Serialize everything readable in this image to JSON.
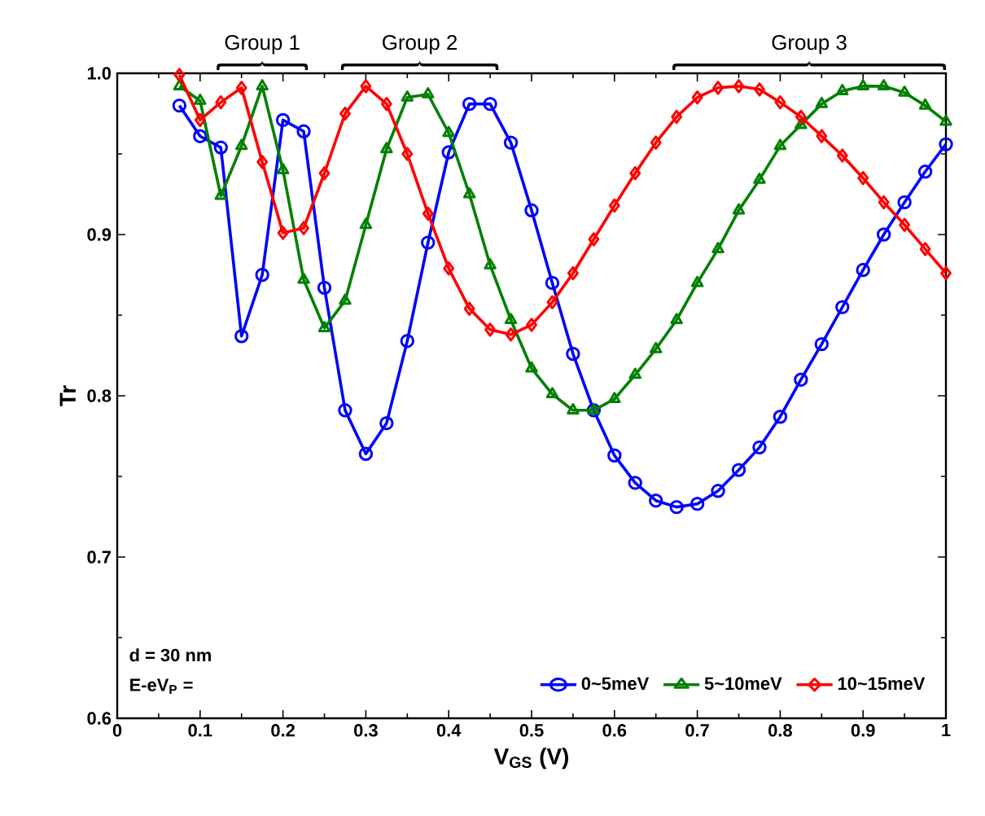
{
  "chart_data": {
    "type": "line",
    "xlabel": "V$_{GS}$ (V)",
    "ylabel": "Tr",
    "xlim": [
      0,
      1
    ],
    "ylim": [
      0.6,
      1.0
    ],
    "xticks": [
      0,
      0.1,
      0.2,
      0.3,
      0.4,
      0.5,
      0.6,
      0.7,
      0.8,
      0.9,
      1
    ],
    "yticks": [
      0.6,
      0.7,
      0.8,
      0.9,
      {
        "value": 1.0,
        "label": "1.0"
      }
    ],
    "grid": false,
    "legend": "bottom right",
    "legend_title": "E-eV$_{P}$ =",
    "annotations": [
      "Group 1",
      "Group 2",
      "Group 3",
      "d = 30 nm"
    ],
    "series": [
      {
        "name": "0~5meV",
        "color": "#0000ff",
        "marker": "circle",
        "x": [
          0.075,
          0.1,
          0.125,
          0.15,
          0.175,
          0.2,
          0.225,
          0.25,
          0.275,
          0.3,
          0.325,
          0.35,
          0.375,
          0.4,
          0.425,
          0.45,
          0.475,
          0.5,
          0.525,
          0.55,
          0.575,
          0.6,
          0.625,
          0.65,
          0.675,
          0.7,
          0.725,
          0.75,
          0.775,
          0.8,
          0.825,
          0.85,
          0.875,
          0.9,
          0.925,
          0.95,
          0.975,
          1.0
        ],
        "values": [
          0.98,
          0.961,
          0.954,
          0.837,
          0.875,
          0.971,
          0.964,
          0.867,
          0.791,
          0.764,
          0.783,
          0.834,
          0.895,
          0.951,
          0.981,
          0.981,
          0.957,
          0.915,
          0.87,
          0.826,
          0.791,
          0.763,
          0.746,
          0.735,
          0.731,
          0.733,
          0.741,
          0.754,
          0.768,
          0.787,
          0.81,
          0.832,
          0.855,
          0.878,
          0.9,
          0.92,
          0.939,
          0.956
        ]
      },
      {
        "name": "5~10meV",
        "color": "#008000",
        "marker": "triangle",
        "x": [
          0.075,
          0.1,
          0.125,
          0.15,
          0.175,
          0.2,
          0.225,
          0.25,
          0.275,
          0.3,
          0.325,
          0.35,
          0.375,
          0.4,
          0.425,
          0.45,
          0.475,
          0.5,
          0.525,
          0.55,
          0.575,
          0.6,
          0.625,
          0.65,
          0.675,
          0.7,
          0.725,
          0.75,
          0.775,
          0.8,
          0.825,
          0.85,
          0.875,
          0.9,
          0.925,
          0.95,
          0.975,
          1.0
        ],
        "values": [
          0.992,
          0.983,
          0.924,
          0.955,
          0.992,
          0.94,
          0.872,
          0.842,
          0.859,
          0.906,
          0.953,
          0.985,
          0.987,
          0.963,
          0.925,
          0.881,
          0.847,
          0.817,
          0.801,
          0.791,
          0.791,
          0.798,
          0.813,
          0.829,
          0.847,
          0.87,
          0.891,
          0.915,
          0.934,
          0.955,
          0.968,
          0.981,
          0.989,
          0.992,
          0.992,
          0.988,
          0.98,
          0.97
        ]
      },
      {
        "name": "10~15meV",
        "color": "#ff0000",
        "marker": "diamond",
        "x": [
          0.075,
          0.1,
          0.125,
          0.15,
          0.175,
          0.2,
          0.225,
          0.25,
          0.275,
          0.3,
          0.325,
          0.35,
          0.375,
          0.4,
          0.425,
          0.45,
          0.475,
          0.5,
          0.525,
          0.55,
          0.575,
          0.6,
          0.625,
          0.65,
          0.675,
          0.7,
          0.725,
          0.75,
          0.775,
          0.8,
          0.825,
          0.85,
          0.875,
          0.9,
          0.925,
          0.95,
          0.975,
          1.0
        ],
        "values": [
          0.999,
          0.971,
          0.982,
          0.991,
          0.945,
          0.901,
          0.904,
          0.938,
          0.975,
          0.992,
          0.981,
          0.95,
          0.913,
          0.879,
          0.854,
          0.841,
          0.838,
          0.844,
          0.858,
          0.876,
          0.897,
          0.918,
          0.938,
          0.957,
          0.973,
          0.985,
          0.991,
          0.992,
          0.99,
          0.982,
          0.973,
          0.961,
          0.949,
          0.935,
          0.92,
          0.906,
          0.891,
          0.876
        ]
      }
    ]
  }
}
